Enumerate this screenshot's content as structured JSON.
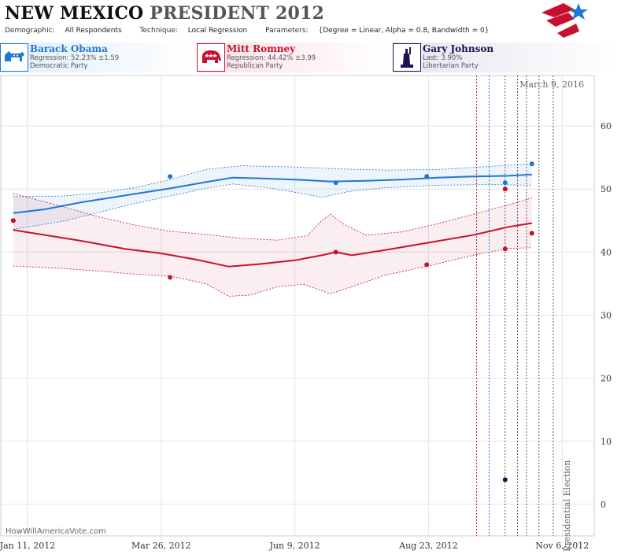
{
  "header": {
    "state": "NEW MEXICO",
    "race": "PRESIDENT",
    "year": "2012",
    "demographic_label": "Demographic:",
    "demographic_value": "All Respondents",
    "technique_label": "Technique:",
    "technique_value": "Local Regression",
    "parameters_label": "Parameters:",
    "parameters_value": "{Degree = Linear, Alpha = 0.8, Bandwidth = 0}"
  },
  "candidates": [
    {
      "name": "Barack Obama",
      "stat": "Regression: 52.23% ±1.59",
      "party": "Democratic Party",
      "color": "#1f77d4"
    },
    {
      "name": "Mitt Romney",
      "stat": "Regression: 44.42% ±3.99",
      "party": "Republican Party",
      "color": "#c8102e"
    },
    {
      "name": "Gary Johnson",
      "stat": "Last: 3.90%",
      "party": "Libertarian Party",
      "color": "#1a1450"
    }
  ],
  "chart_data": {
    "type": "line",
    "x_ticks": [
      "Jan 11, 2012",
      "Mar 26, 2012",
      "Jun 9, 2012",
      "Aug 23, 2012",
      "Nov 6, 2012"
    ],
    "x_tick_days": [
      0,
      75,
      150,
      225,
      300
    ],
    "y_ticks": [
      0,
      10,
      20,
      30,
      40,
      50,
      60
    ],
    "ylim": [
      -5,
      68
    ],
    "xlim": [
      -15,
      318
    ],
    "annotation_date": "March 9, 2016",
    "election_label": "NM Presidential Election",
    "watermark": "HowWillAmericaVote.com",
    "vlines_red": [
      252
    ],
    "vlines_blue": [
      259
    ],
    "vlines_black": [
      268,
      275,
      280,
      287,
      295
    ],
    "series": [
      {
        "name": "Barack Obama",
        "color": "#1f77d4",
        "trend": [
          [
            -8,
            46.2
          ],
          [
            10,
            46.8
          ],
          [
            30,
            47.9
          ],
          [
            55,
            49.0
          ],
          [
            80,
            50.1
          ],
          [
            100,
            51.1
          ],
          [
            115,
            51.8
          ],
          [
            130,
            51.7
          ],
          [
            150,
            51.5
          ],
          [
            170,
            51.2
          ],
          [
            190,
            51.3
          ],
          [
            210,
            51.5
          ],
          [
            230,
            51.8
          ],
          [
            250,
            52.0
          ],
          [
            270,
            52.1
          ],
          [
            283,
            52.3
          ]
        ],
        "upper": [
          [
            -8,
            48.8
          ],
          [
            20,
            48.9
          ],
          [
            40,
            49.4
          ],
          [
            60,
            50.2
          ],
          [
            80,
            51.5
          ],
          [
            100,
            53.1
          ],
          [
            120,
            53.7
          ],
          [
            150,
            53.5
          ],
          [
            175,
            53.2
          ],
          [
            200,
            53.0
          ],
          [
            230,
            53.1
          ],
          [
            260,
            53.6
          ],
          [
            283,
            54.0
          ]
        ],
        "lower": [
          [
            -8,
            43.6
          ],
          [
            20,
            44.9
          ],
          [
            40,
            46.3
          ],
          [
            60,
            47.7
          ],
          [
            80,
            48.9
          ],
          [
            100,
            50.1
          ],
          [
            115,
            50.8
          ],
          [
            135,
            50.2
          ],
          [
            150,
            49.5
          ],
          [
            165,
            48.7
          ],
          [
            180,
            49.6
          ],
          [
            200,
            50.2
          ],
          [
            230,
            50.6
          ],
          [
            260,
            50.7
          ],
          [
            283,
            50.6
          ]
        ],
        "points": [
          [
            -8,
            45
          ],
          [
            80,
            52
          ],
          [
            173,
            51
          ],
          [
            224,
            52
          ],
          [
            268,
            51
          ],
          [
            283,
            54
          ]
        ]
      },
      {
        "name": "Mitt Romney",
        "color": "#c8102e",
        "trend": [
          [
            -8,
            43.5
          ],
          [
            10,
            42.7
          ],
          [
            30,
            41.8
          ],
          [
            55,
            40.5
          ],
          [
            75,
            39.8
          ],
          [
            95,
            38.8
          ],
          [
            113,
            37.7
          ],
          [
            130,
            38.1
          ],
          [
            150,
            38.7
          ],
          [
            165,
            39.5
          ],
          [
            173,
            40.0
          ],
          [
            182,
            39.5
          ],
          [
            200,
            40.3
          ],
          [
            225,
            41.5
          ],
          [
            250,
            42.7
          ],
          [
            270,
            44.0
          ],
          [
            283,
            44.6
          ]
        ],
        "upper": [
          [
            -8,
            49.3
          ],
          [
            20,
            47.2
          ],
          [
            40,
            45.6
          ],
          [
            60,
            44.3
          ],
          [
            80,
            43.3
          ],
          [
            100,
            42.8
          ],
          [
            120,
            42.2
          ],
          [
            140,
            41.9
          ],
          [
            157,
            42.6
          ],
          [
            165,
            45.0
          ],
          [
            170,
            46.0
          ],
          [
            177,
            44.5
          ],
          [
            190,
            42.7
          ],
          [
            210,
            43.2
          ],
          [
            230,
            44.5
          ],
          [
            250,
            46.0
          ],
          [
            270,
            47.5
          ],
          [
            283,
            48.6
          ]
        ],
        "lower": [
          [
            -8,
            37.8
          ],
          [
            20,
            37.4
          ],
          [
            40,
            37.0
          ],
          [
            60,
            36.5
          ],
          [
            80,
            36.2
          ],
          [
            100,
            35.0
          ],
          [
            113,
            33.0
          ],
          [
            125,
            33.2
          ],
          [
            140,
            34.5
          ],
          [
            155,
            34.9
          ],
          [
            170,
            33.4
          ],
          [
            182,
            34.5
          ],
          [
            200,
            36.3
          ],
          [
            225,
            37.8
          ],
          [
            250,
            39.5
          ],
          [
            270,
            40.6
          ],
          [
            283,
            40.7
          ]
        ],
        "points": [
          [
            -8,
            45
          ],
          [
            80,
            36
          ],
          [
            173,
            40
          ],
          [
            224,
            38
          ],
          [
            268,
            40.5
          ],
          [
            268,
            50
          ],
          [
            283,
            43
          ]
        ]
      },
      {
        "name": "Gary Johnson",
        "color": "#1a1450",
        "trend": [],
        "upper": [],
        "lower": [],
        "points": [
          [
            268,
            3.9
          ]
        ]
      }
    ]
  }
}
